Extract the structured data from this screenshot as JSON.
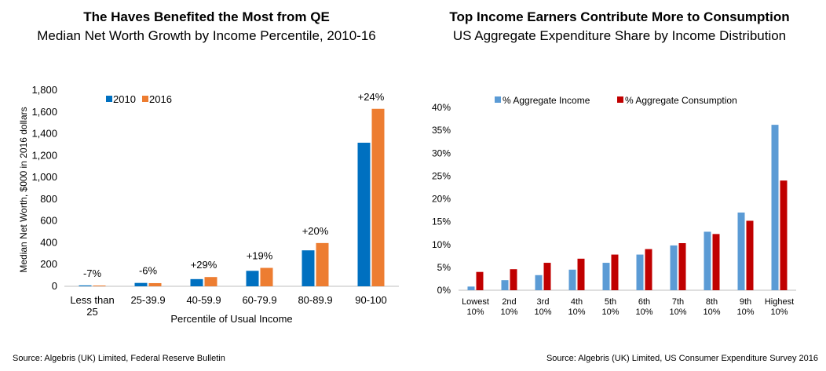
{
  "charts": [
    {
      "title": "The Haves Benefited the Most from QE",
      "subtitle": "Median Net Worth Growth by Income Percentile, 2010-16",
      "source": "Source: Algebris (UK) Limited, Federal Reserve Bulletin",
      "colors": {
        "2010": "#0070C0",
        "2016": "#ED7D31"
      }
    },
    {
      "title": "Top Income Earners Contribute More to Consumption",
      "subtitle": "US Aggregate Expenditure Share by Income Distribution",
      "source": "Source: Algebris (UK) Limited, US Consumer Expenditure Survey 2016",
      "colors": {
        "income": "#5B9BD5",
        "consumption": "#C00000"
      }
    }
  ],
  "chart_data": [
    {
      "type": "bar",
      "title": "The Haves Benefited the Most from QE",
      "categories": [
        "Less than 25",
        "25-39.9",
        "40-59.9",
        "60-79.9",
        "80-89.9",
        "90-100"
      ],
      "category_lines": [
        [
          "Less than",
          "25"
        ],
        [
          "25-39.9"
        ],
        [
          "40-59.9"
        ],
        [
          "60-79.9"
        ],
        [
          "80-89.9"
        ],
        [
          "90-100"
        ]
      ],
      "series": [
        {
          "name": "2010",
          "values": [
            8,
            31,
            66,
            142,
            330,
            1318
          ]
        },
        {
          "name": "2016",
          "values": [
            7,
            29,
            85,
            169,
            397,
            1629
          ]
        }
      ],
      "annotations": [
        "-7%",
        "-6%",
        "+29%",
        "+19%",
        "+20%",
        "+24%"
      ],
      "xlabel": "Percentile of Usual Income",
      "ylabel": "Median Net Worth, $000 in 2016 dollars",
      "ylim": [
        0,
        1800
      ],
      "yticks": [
        0,
        200,
        400,
        600,
        800,
        1000,
        1200,
        1400,
        1600,
        1800
      ],
      "ytick_labels": [
        "0",
        "200",
        "400",
        "600",
        "800",
        "1,000",
        "1,200",
        "1,400",
        "1,600",
        "1,800"
      ],
      "legend": "top-left",
      "grid": false
    },
    {
      "type": "bar",
      "title": "Top Income Earners Contribute More to Consumption",
      "categories": [
        "Lowest 10%",
        "2nd 10%",
        "3rd 10%",
        "4th 10%",
        "5th 10%",
        "6th 10%",
        "7th 10%",
        "8th 10%",
        "9th 10%",
        "Highest 10%"
      ],
      "category_lines": [
        [
          "Lowest",
          "10%"
        ],
        [
          "2nd",
          "10%"
        ],
        [
          "3rd",
          "10%"
        ],
        [
          "4th",
          "10%"
        ],
        [
          "5th",
          "10%"
        ],
        [
          "6th",
          "10%"
        ],
        [
          "7th",
          "10%"
        ],
        [
          "8th",
          "10%"
        ],
        [
          "9th",
          "10%"
        ],
        [
          "Highest",
          "10%"
        ]
      ],
      "series": [
        {
          "name": "% Aggregate Income",
          "values": [
            0.8,
            2.2,
            3.3,
            4.5,
            6.0,
            7.8,
            9.8,
            12.8,
            17.0,
            36.2
          ]
        },
        {
          "name": "% Aggregate Consumption",
          "values": [
            4.0,
            4.6,
            6.0,
            6.9,
            7.8,
            9.0,
            10.3,
            12.3,
            15.2,
            24.0
          ]
        }
      ],
      "xlabel": "",
      "ylabel": "",
      "ylim": [
        0,
        40
      ],
      "yticks": [
        0,
        5,
        10,
        15,
        20,
        25,
        30,
        35,
        40
      ],
      "ytick_labels": [
        "0%",
        "5%",
        "10%",
        "15%",
        "20%",
        "25%",
        "30%",
        "35%",
        "40%"
      ],
      "legend": "top",
      "grid": false
    }
  ]
}
